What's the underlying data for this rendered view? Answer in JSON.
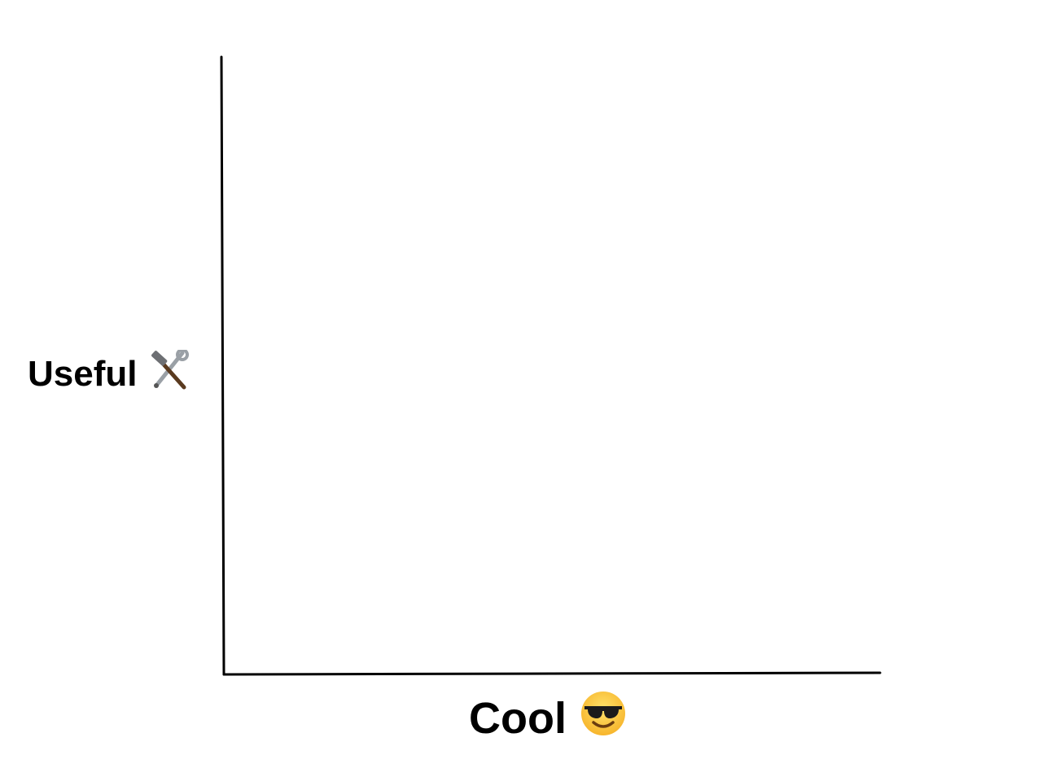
{
  "chart_data": {
    "type": "scatter",
    "title": "",
    "xlabel": "Cool",
    "ylabel": "Useful",
    "xlabel_icon": "smiling-face-with-sunglasses-icon",
    "ylabel_icon": "hammer-and-wrench-icon",
    "xlim": [
      0,
      1
    ],
    "ylim": [
      0,
      1
    ],
    "x_ticks": [],
    "y_ticks": [],
    "grid": false,
    "series": [],
    "colors": {
      "axis": "#000000",
      "background": "#ffffff"
    }
  }
}
